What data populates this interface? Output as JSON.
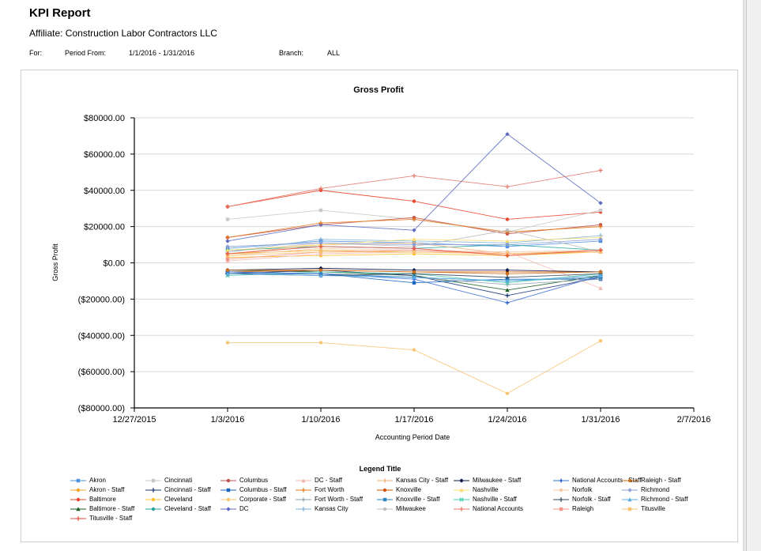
{
  "header": {
    "title": "KPI Report",
    "affiliate": "Affiliate: Construction Labor Contractors LLC",
    "for_label": "For:",
    "period_label": "Period From:",
    "period_value": "1/1/2016 - 1/31/2016",
    "branch_label": "Branch:",
    "branch_value": "ALL"
  },
  "chart_data": {
    "type": "line",
    "title": "Gross Profit",
    "xlabel": "Accounting Period Date",
    "ylabel": "Gross Profit",
    "legend_title": "Legend Title",
    "legend_position": "bottom",
    "ylim": [
      -80000,
      80000
    ],
    "yticks": [
      80000,
      60000,
      40000,
      20000,
      0,
      -20000,
      -40000,
      -60000,
      -80000
    ],
    "ytick_labels": [
      "$80000.00",
      "$60000.00",
      "$40000.00",
      "$20000.00",
      "$0.00",
      "($20000.00)",
      "($40000.00)",
      "($60000.00)",
      "($80000.00)"
    ],
    "xtick_labels": [
      "12/27/2015",
      "1/3/2016",
      "1/10/2016",
      "1/17/2016",
      "1/24/2016",
      "1/31/2016",
      "2/7/2016"
    ],
    "x": [
      "1/3/2016",
      "1/10/2016",
      "1/17/2016",
      "1/24/2016",
      "1/31/2016"
    ],
    "series": [
      {
        "name": "Akron",
        "color": "#4a90e2",
        "marker": "square",
        "values": [
          8000,
          12000,
          11000,
          9000,
          12000
        ]
      },
      {
        "name": "Akron - Staff",
        "color": "#f5a623",
        "marker": "circle",
        "values": [
          5000,
          7000,
          6000,
          5000,
          6000
        ]
      },
      {
        "name": "Baltimore",
        "color": "#e8452c",
        "marker": "circle",
        "values": [
          31000,
          40000,
          34000,
          24000,
          28000
        ]
      },
      {
        "name": "Baltimore - Staff",
        "color": "#1b5e20",
        "marker": "triangle",
        "values": [
          -4000,
          -5000,
          -7000,
          -15000,
          -7000
        ]
      },
      {
        "name": "Cincinnati",
        "color": "#c8c8c8",
        "marker": "square",
        "values": [
          24000,
          29000,
          24000,
          17000,
          29000
        ]
      },
      {
        "name": "Cincinnati - Staff",
        "color": "#1f3a7a",
        "marker": "plus",
        "values": [
          -6000,
          -4000,
          -7000,
          -18000,
          -8000
        ]
      },
      {
        "name": "Cleveland",
        "color": "#fbc02d",
        "marker": "circle",
        "values": [
          3000,
          4000,
          5000,
          4000,
          6000
        ]
      },
      {
        "name": "Cleveland - Staff",
        "color": "#26a69a",
        "marker": "circle",
        "values": [
          7000,
          9000,
          8000,
          10000,
          7000
        ]
      },
      {
        "name": "Columbus",
        "color": "#c0504d",
        "marker": "circle",
        "values": [
          14000,
          21000,
          25000,
          16000,
          21000
        ]
      },
      {
        "name": "Columbus - Staff",
        "color": "#1565c0",
        "marker": "square",
        "values": [
          -6000,
          -6000,
          -11000,
          -9000,
          -9000
        ]
      },
      {
        "name": "Corporate - Staff",
        "color": "#f8c471",
        "marker": "circle",
        "values": [
          -44000,
          -44000,
          -48000,
          -72000,
          -43000
        ]
      },
      {
        "name": "DC",
        "color": "#5c6bc0",
        "marker": "diamond",
        "values": [
          12000,
          21000,
          18000,
          71000,
          33000
        ]
      },
      {
        "name": "DC - Staff",
        "color": "#f5b7b1",
        "marker": "triangle",
        "values": [
          1000,
          5000,
          6000,
          6000,
          -14000
        ]
      },
      {
        "name": "Fort Worth",
        "color": "#e67e22",
        "marker": "plus",
        "values": [
          14000,
          22000,
          24000,
          17000,
          20000
        ]
      },
      {
        "name": "Fort Worth - Staff",
        "color": "#90a4ae",
        "marker": "plus",
        "values": [
          -5000,
          -6000,
          -8000,
          -12000,
          -9000
        ]
      },
      {
        "name": "Kansas City",
        "color": "#7fb3d5",
        "marker": "plus",
        "values": [
          6000,
          13000,
          12000,
          11000,
          15000
        ]
      },
      {
        "name": "Kansas City - Staff",
        "color": "#f0b27a",
        "marker": "plus",
        "values": [
          5000,
          10000,
          11000,
          5000,
          7000
        ]
      },
      {
        "name": "Knoxville",
        "color": "#d35400",
        "marker": "circle",
        "values": [
          -5000,
          -4000,
          -5000,
          -5000,
          -5000
        ]
      },
      {
        "name": "Knoxville - Staff",
        "color": "#2e86c1",
        "marker": "square",
        "values": [
          -5000,
          -6000,
          -8000,
          -10000,
          -8000
        ]
      },
      {
        "name": "Milwaukee",
        "color": "#bdbdbd",
        "marker": "circle",
        "values": [
          6000,
          11000,
          9000,
          18000,
          6000
        ]
      },
      {
        "name": "Milwaukee - Staff",
        "color": "#0d1b4a",
        "marker": "diamond",
        "values": [
          -4000,
          -3000,
          -4000,
          -4000,
          -5000
        ]
      },
      {
        "name": "Nashville",
        "color": "#f7dc6f",
        "marker": "triangle",
        "values": [
          7000,
          10000,
          13000,
          12000,
          14000
        ]
      },
      {
        "name": "Nashville - Staff",
        "color": "#48c9b0",
        "marker": "cross",
        "values": [
          -7000,
          -5000,
          -6000,
          -11000,
          -6000
        ]
      },
      {
        "name": "National Accounts",
        "color": "#e6786a",
        "marker": "plus",
        "values": [
          31000,
          41000,
          48000,
          42000,
          51000
        ]
      },
      {
        "name": "National Accounts - Staff",
        "color": "#3b6fd6",
        "marker": "star",
        "values": [
          -5000,
          -6000,
          -9000,
          -22000,
          -7000
        ]
      },
      {
        "name": "Norfolk",
        "color": "#f5cba7",
        "marker": "circle",
        "values": [
          4000,
          8000,
          7000,
          6000,
          7000
        ]
      },
      {
        "name": "Norfolk - Staff",
        "color": "#34495e",
        "marker": "plus",
        "values": [
          -6000,
          -7000,
          -6000,
          -8000,
          -6000
        ]
      },
      {
        "name": "Raleigh",
        "color": "#f1948a",
        "marker": "square",
        "values": [
          2000,
          6000,
          7000,
          5000,
          6000
        ]
      },
      {
        "name": "Raleigh - Staff",
        "color": "#ca6f1e",
        "marker": "circle",
        "values": [
          -4000,
          -4000,
          -5000,
          -6000,
          -5000
        ]
      },
      {
        "name": "Richmond",
        "color": "#8e9fd6",
        "marker": "diamond",
        "values": [
          9000,
          11000,
          10000,
          10000,
          13000
        ]
      },
      {
        "name": "Richmond - Staff",
        "color": "#5dade2",
        "marker": "triangle",
        "values": [
          -6000,
          -7000,
          -8000,
          -10000,
          -7000
        ]
      },
      {
        "name": "Titusville",
        "color": "#f8c471",
        "marker": "square",
        "values": [
          4000,
          6000,
          6000,
          5000,
          6000
        ]
      },
      {
        "name": "Titusville - Staff",
        "color": "#e74c3c",
        "marker": "plus",
        "values": [
          5000,
          9000,
          8000,
          4000,
          7000
        ]
      }
    ]
  }
}
